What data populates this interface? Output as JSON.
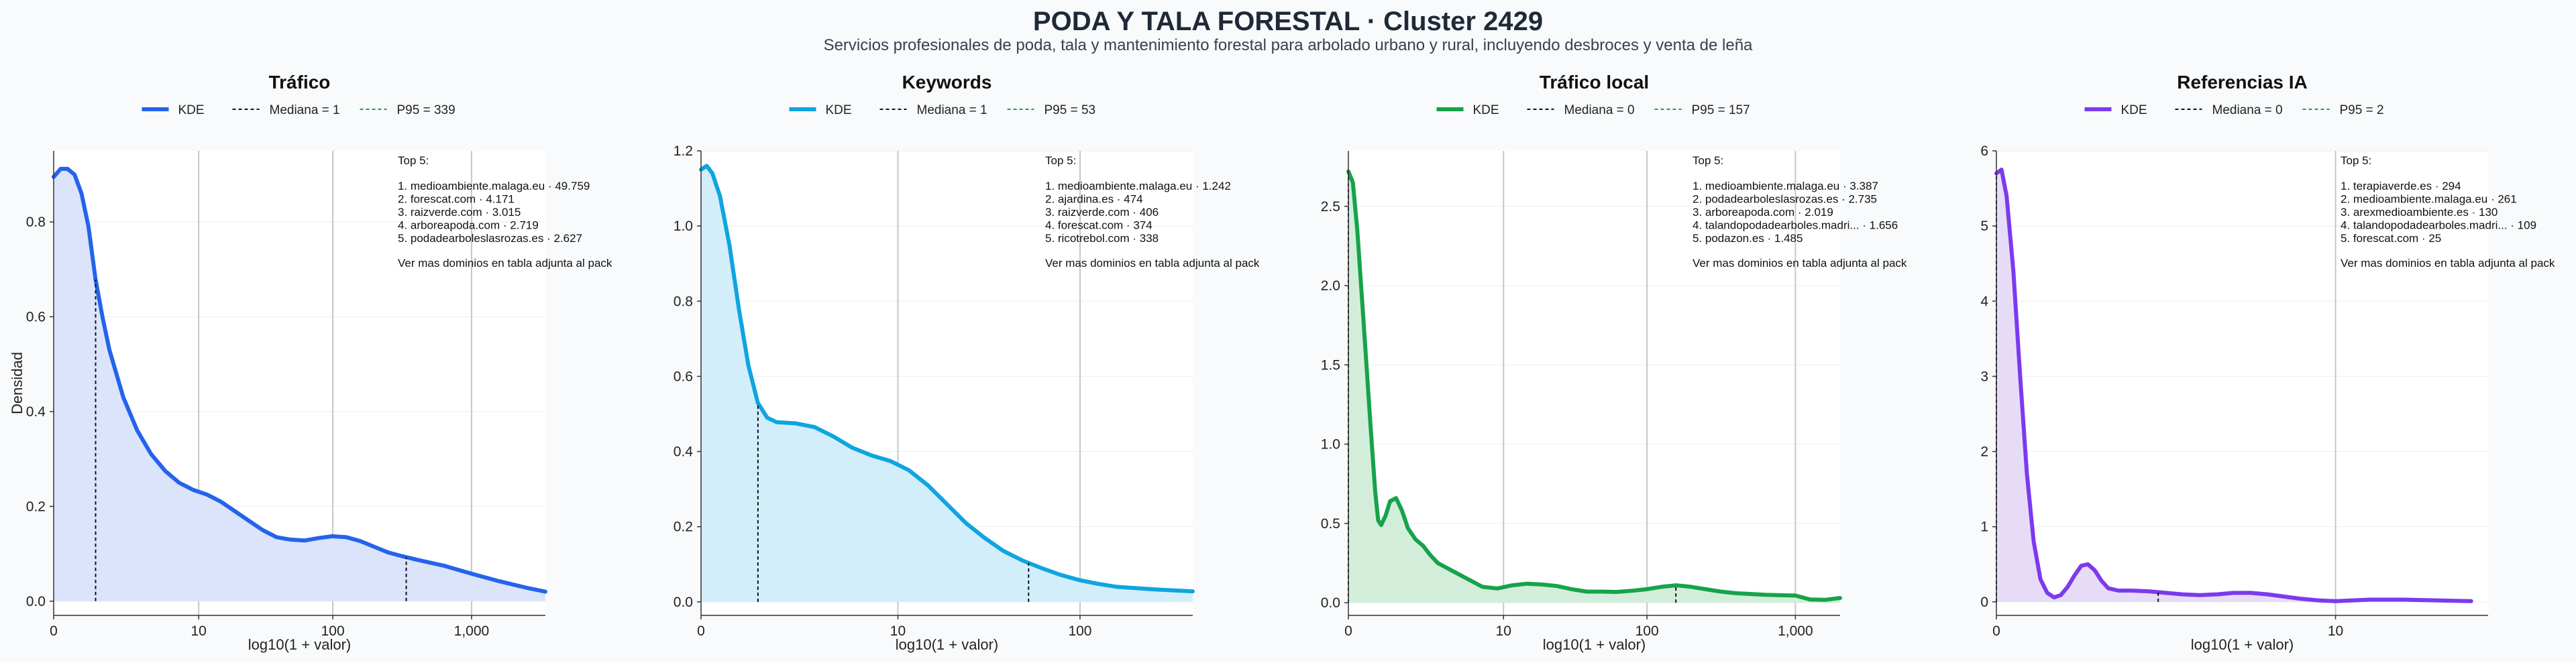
{
  "page": {
    "title": "PODA Y TALA FORESTAL · Cluster 2429",
    "subtitle": "Servicios profesionales de poda, tala y mantenimiento forestal para arbolado urbano y rural, incluyendo desbroces y venta de leña"
  },
  "common": {
    "xlabel": "log10(1 + valor)",
    "ylabel": "Densidad",
    "legend_kde": "KDE",
    "top_heading": "Top 5:",
    "top_footer": "Ver mas dominios en tabla adjunta al pack",
    "colors": {
      "median_line": "#111111",
      "p95_line": "#16a34a",
      "grid": "#c7c7c7"
    }
  },
  "chart_data": [
    {
      "type": "area",
      "title": "Tráfico",
      "color": "#2563eb",
      "fill": "#dbe4fb",
      "xlim": [
        0,
        3.53
      ],
      "ylim": [
        -0.03,
        0.95
      ],
      "xticks": [
        {
          "v": 0,
          "label": "0"
        },
        {
          "v": 1.041,
          "label": "10"
        },
        {
          "v": 2.004,
          "label": "100"
        },
        {
          "v": 3.0,
          "label": "1,000"
        }
      ],
      "yticks": [
        {
          "v": 0,
          "label": "0.0"
        },
        {
          "v": 0.2,
          "label": "0.2"
        },
        {
          "v": 0.4,
          "label": "0.4"
        },
        {
          "v": 0.6,
          "label": "0.6"
        },
        {
          "v": 0.8,
          "label": "0.8"
        }
      ],
      "legend_median": "Mediana = 1",
      "legend_p95": "P95 = 339",
      "median_x": 0.301,
      "p95_x": 2.531,
      "kde": [
        [
          0,
          0.895
        ],
        [
          0.05,
          0.912
        ],
        [
          0.1,
          0.912
        ],
        [
          0.15,
          0.9
        ],
        [
          0.2,
          0.86
        ],
        [
          0.25,
          0.79
        ],
        [
          0.3,
          0.68
        ],
        [
          0.35,
          0.6
        ],
        [
          0.4,
          0.53
        ],
        [
          0.5,
          0.43
        ],
        [
          0.6,
          0.36
        ],
        [
          0.7,
          0.31
        ],
        [
          0.8,
          0.275
        ],
        [
          0.9,
          0.25
        ],
        [
          1.0,
          0.235
        ],
        [
          1.1,
          0.225
        ],
        [
          1.2,
          0.21
        ],
        [
          1.3,
          0.19
        ],
        [
          1.4,
          0.17
        ],
        [
          1.5,
          0.15
        ],
        [
          1.6,
          0.135
        ],
        [
          1.7,
          0.13
        ],
        [
          1.8,
          0.128
        ],
        [
          1.9,
          0.133
        ],
        [
          2.0,
          0.137
        ],
        [
          2.1,
          0.135
        ],
        [
          2.2,
          0.127
        ],
        [
          2.3,
          0.115
        ],
        [
          2.4,
          0.103
        ],
        [
          2.5,
          0.095
        ],
        [
          2.6,
          0.088
        ],
        [
          2.8,
          0.075
        ],
        [
          3.0,
          0.058
        ],
        [
          3.2,
          0.042
        ],
        [
          3.4,
          0.028
        ],
        [
          3.53,
          0.02
        ]
      ],
      "top5": [
        "1. medioambiente.malaga.eu · 49.759",
        "2. forescat.com · 4.171",
        "3. raizverde.com · 3.015",
        "4. arboreapoda.com · 2.719",
        "5. podadearboleslasrozas.es · 2.627"
      ],
      "show_ylabel": true
    },
    {
      "type": "area",
      "title": "Keywords",
      "color": "#0ea5e0",
      "fill": "#d3eefb",
      "xlim": [
        0,
        2.6
      ],
      "ylim": [
        -0.036,
        1.2
      ],
      "xticks": [
        {
          "v": 0,
          "label": "0"
        },
        {
          "v": 1.041,
          "label": "10"
        },
        {
          "v": 2.004,
          "label": "100"
        }
      ],
      "yticks": [
        {
          "v": 0,
          "label": "0.0"
        },
        {
          "v": 0.2,
          "label": "0.2"
        },
        {
          "v": 0.4,
          "label": "0.4"
        },
        {
          "v": 0.6,
          "label": "0.6"
        },
        {
          "v": 0.8,
          "label": "0.8"
        },
        {
          "v": 1.0,
          "label": "1.0"
        },
        {
          "v": 1.2,
          "label": "1.2"
        }
      ],
      "legend_median": "Mediana = 1",
      "legend_p95": "P95 = 53",
      "median_x": 0.301,
      "p95_x": 1.732,
      "kde": [
        [
          0,
          1.15
        ],
        [
          0.03,
          1.16
        ],
        [
          0.06,
          1.14
        ],
        [
          0.1,
          1.08
        ],
        [
          0.15,
          0.95
        ],
        [
          0.2,
          0.78
        ],
        [
          0.25,
          0.63
        ],
        [
          0.3,
          0.53
        ],
        [
          0.35,
          0.49
        ],
        [
          0.4,
          0.478
        ],
        [
          0.5,
          0.475
        ],
        [
          0.6,
          0.465
        ],
        [
          0.7,
          0.44
        ],
        [
          0.8,
          0.41
        ],
        [
          0.9,
          0.39
        ],
        [
          1.0,
          0.375
        ],
        [
          1.1,
          0.35
        ],
        [
          1.2,
          0.31
        ],
        [
          1.3,
          0.26
        ],
        [
          1.4,
          0.21
        ],
        [
          1.5,
          0.17
        ],
        [
          1.6,
          0.135
        ],
        [
          1.7,
          0.11
        ],
        [
          1.8,
          0.09
        ],
        [
          1.9,
          0.072
        ],
        [
          2.0,
          0.058
        ],
        [
          2.1,
          0.048
        ],
        [
          2.2,
          0.04
        ],
        [
          2.4,
          0.033
        ],
        [
          2.6,
          0.028
        ]
      ],
      "top5": [
        "1. medioambiente.malaga.eu · 1.242",
        "2. ajardina.es · 474",
        "3. raizverde.com · 406",
        "4. forescat.com · 374",
        "5. ricotrebol.com · 338"
      ],
      "show_ylabel": false
    },
    {
      "type": "area",
      "title": "Tráfico local",
      "color": "#16a34a",
      "fill": "#d2eedb",
      "xlim": [
        0,
        3.3
      ],
      "ylim": [
        -0.08,
        2.85
      ],
      "xticks": [
        {
          "v": 0,
          "label": "0"
        },
        {
          "v": 1.041,
          "label": "10"
        },
        {
          "v": 2.004,
          "label": "100"
        },
        {
          "v": 3.0,
          "label": "1,000"
        }
      ],
      "yticks": [
        {
          "v": 0,
          "label": "0.0"
        },
        {
          "v": 0.5,
          "label": "0.5"
        },
        {
          "v": 1.0,
          "label": "1.0"
        },
        {
          "v": 1.5,
          "label": "1.5"
        },
        {
          "v": 2.0,
          "label": "2.0"
        },
        {
          "v": 2.5,
          "label": "2.5"
        }
      ],
      "legend_median": "Mediana = 0",
      "legend_p95": "P95 = 157",
      "median_x": 0.0,
      "p95_x": 2.198,
      "kde": [
        [
          0,
          2.72
        ],
        [
          0.03,
          2.65
        ],
        [
          0.06,
          2.35
        ],
        [
          0.1,
          1.8
        ],
        [
          0.15,
          1.1
        ],
        [
          0.18,
          0.7
        ],
        [
          0.2,
          0.52
        ],
        [
          0.22,
          0.49
        ],
        [
          0.25,
          0.55
        ],
        [
          0.28,
          0.64
        ],
        [
          0.32,
          0.66
        ],
        [
          0.36,
          0.58
        ],
        [
          0.4,
          0.47
        ],
        [
          0.45,
          0.4
        ],
        [
          0.5,
          0.36
        ],
        [
          0.55,
          0.3
        ],
        [
          0.6,
          0.25
        ],
        [
          0.7,
          0.2
        ],
        [
          0.8,
          0.15
        ],
        [
          0.9,
          0.1
        ],
        [
          1.0,
          0.09
        ],
        [
          1.1,
          0.11
        ],
        [
          1.2,
          0.12
        ],
        [
          1.3,
          0.115
        ],
        [
          1.4,
          0.105
        ],
        [
          1.5,
          0.085
        ],
        [
          1.6,
          0.07
        ],
        [
          1.7,
          0.07
        ],
        [
          1.8,
          0.068
        ],
        [
          1.9,
          0.075
        ],
        [
          2.0,
          0.085
        ],
        [
          2.1,
          0.1
        ],
        [
          2.2,
          0.11
        ],
        [
          2.3,
          0.1
        ],
        [
          2.4,
          0.085
        ],
        [
          2.5,
          0.07
        ],
        [
          2.6,
          0.06
        ],
        [
          2.8,
          0.05
        ],
        [
          3.0,
          0.045
        ],
        [
          3.1,
          0.02
        ],
        [
          3.2,
          0.018
        ],
        [
          3.3,
          0.03
        ]
      ],
      "top5": [
        "1. medioambiente.malaga.eu · 3.387",
        "2. podadearboleslasrozas.es · 2.735",
        "3. arboreapoda.com · 2.019",
        "4. talandopodadearboles.madri... · 1.656",
        "5. podazon.es · 1.485"
      ],
      "show_ylabel": false
    },
    {
      "type": "area",
      "title": "Referencias IA",
      "color": "#7c3aed",
      "fill": "#e7dcf8",
      "xlim": [
        0,
        1.45
      ],
      "ylim": [
        -0.18,
        6.0
      ],
      "xticks": [
        {
          "v": 0,
          "label": "0"
        },
        {
          "v": 1.0,
          "label": "10"
        }
      ],
      "yticks": [
        {
          "v": 0,
          "label": "0"
        },
        {
          "v": 1,
          "label": "1"
        },
        {
          "v": 2,
          "label": "2"
        },
        {
          "v": 3,
          "label": "3"
        },
        {
          "v": 4,
          "label": "4"
        },
        {
          "v": 5,
          "label": "5"
        },
        {
          "v": 6,
          "label": "6"
        }
      ],
      "legend_median": "Mediana = 0",
      "legend_p95": "P95 = 2",
      "median_x": 0.0,
      "p95_x": 0.4771,
      "kde": [
        [
          0,
          5.7
        ],
        [
          0.015,
          5.75
        ],
        [
          0.03,
          5.4
        ],
        [
          0.05,
          4.4
        ],
        [
          0.07,
          3.0
        ],
        [
          0.09,
          1.7
        ],
        [
          0.11,
          0.8
        ],
        [
          0.13,
          0.3
        ],
        [
          0.15,
          0.12
        ],
        [
          0.17,
          0.06
        ],
        [
          0.19,
          0.09
        ],
        [
          0.21,
          0.2
        ],
        [
          0.23,
          0.35
        ],
        [
          0.25,
          0.48
        ],
        [
          0.27,
          0.5
        ],
        [
          0.29,
          0.42
        ],
        [
          0.31,
          0.28
        ],
        [
          0.33,
          0.18
        ],
        [
          0.36,
          0.15
        ],
        [
          0.4,
          0.15
        ],
        [
          0.45,
          0.14
        ],
        [
          0.5,
          0.12
        ],
        [
          0.55,
          0.1
        ],
        [
          0.6,
          0.09
        ],
        [
          0.65,
          0.1
        ],
        [
          0.7,
          0.12
        ],
        [
          0.75,
          0.12
        ],
        [
          0.8,
          0.1
        ],
        [
          0.85,
          0.07
        ],
        [
          0.9,
          0.04
        ],
        [
          0.95,
          0.02
        ],
        [
          1.0,
          0.01
        ],
        [
          1.05,
          0.02
        ],
        [
          1.1,
          0.03
        ],
        [
          1.2,
          0.03
        ],
        [
          1.3,
          0.02
        ],
        [
          1.4,
          0.01
        ]
      ],
      "top5": [
        "1. terapiaverde.es · 294",
        "2. medioambiente.malaga.eu · 261",
        "3. arexmedioambiente.es · 130",
        "4. talandopodadearboles.madri... · 109",
        "5. forescat.com · 25"
      ],
      "show_ylabel": false
    }
  ]
}
